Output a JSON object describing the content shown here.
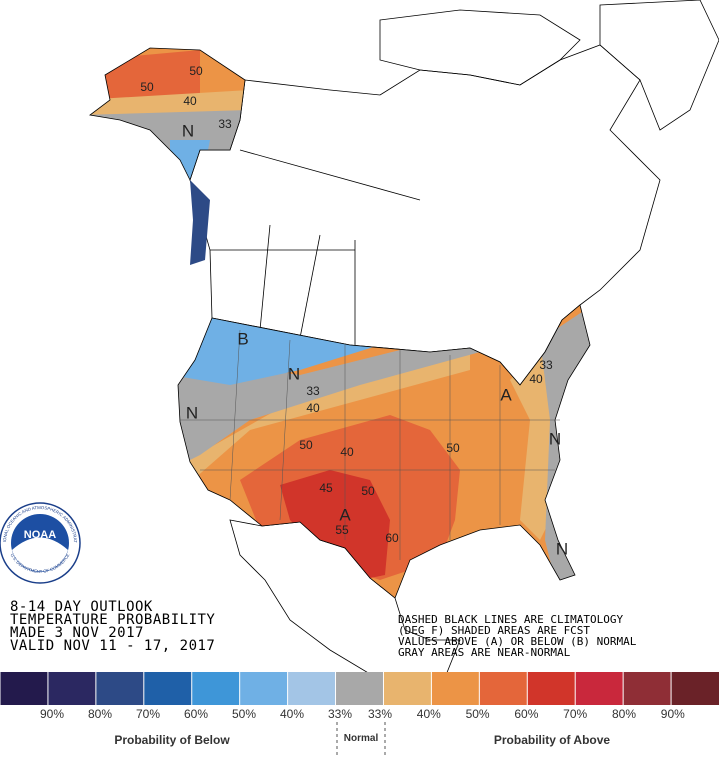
{
  "outlook_text": [
    "8-14 DAY OUTLOOK",
    "TEMPERATURE PROBABILITY",
    "MADE   3 NOV 2017",
    "VALID  NOV 11 - 17, 2017"
  ],
  "notes": [
    "DASHED BLACK LINES ARE CLIMATOLOGY",
    "(DEG F) SHADED AREAS ARE FCST",
    "VALUES ABOVE (A) OR BELOW (B) NORMAL",
    "GRAY AREAS ARE NEAR-NORMAL"
  ],
  "logo": {
    "name": "NOAA",
    "ring_top": "NATIONAL OCEANIC AND ATMOSPHERIC ADMINISTRATION",
    "ring_bottom": "U.S. DEPARTMENT OF COMMERCE"
  },
  "map_labels": [
    "N",
    "50",
    "50",
    "40",
    "33",
    "B",
    "N",
    "N",
    "33",
    "40",
    "50",
    "40",
    "45",
    "50",
    "A",
    "55",
    "60",
    "50",
    "N",
    "A",
    "40",
    "33",
    "N"
  ],
  "legend": {
    "colors": [
      "#231a4c",
      "#2b2861",
      "#2d4a86",
      "#1f60a8",
      "#3e96d8",
      "#6fb0e5",
      "#a3c5e6",
      "#a8a8a8",
      "#e8b46e",
      "#ec9446",
      "#e4663a",
      "#d1352a",
      "#c9283c",
      "#8f2e36",
      "#6a2228"
    ],
    "labels": [
      "90%",
      "80%",
      "70%",
      "60%",
      "50%",
      "40%",
      "33%",
      "33%",
      "40%",
      "50%",
      "60%",
      "70%",
      "80%",
      "90%"
    ],
    "below": "Probability of Below",
    "normal": "Normal",
    "above": "Probability of Above"
  }
}
